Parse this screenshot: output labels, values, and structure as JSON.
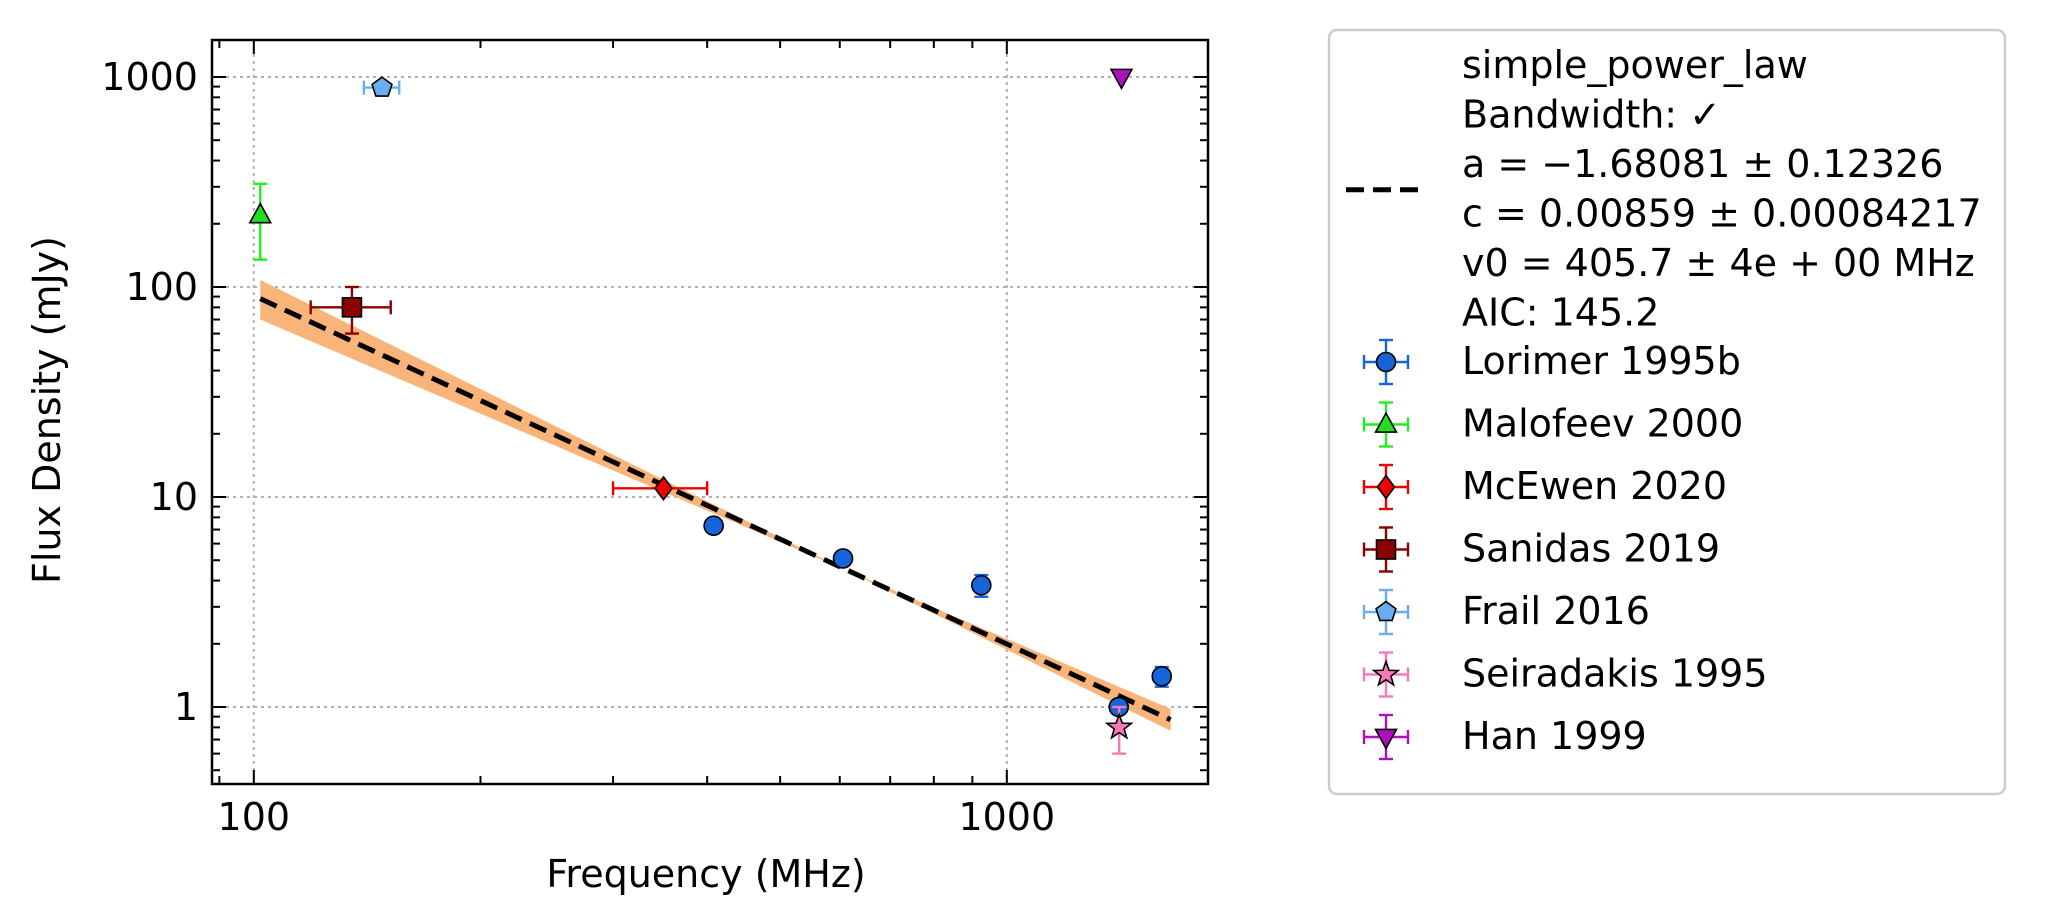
{
  "chart_data": {
    "type": "scatter",
    "title": "",
    "xlabel": "Frequency (MHz)",
    "ylabel": "Flux Density (mJy)",
    "xscale": "log",
    "yscale": "log",
    "xlim": [
      88,
      1850
    ],
    "ylim": [
      0.43,
      1500
    ],
    "grid": true,
    "legend_position": "outside-right",
    "x_ticks": [
      {
        "value": 100,
        "label": "100"
      },
      {
        "value": 1000,
        "label": "1000"
      }
    ],
    "y_ticks": [
      {
        "value": 1,
        "label": "1"
      },
      {
        "value": 10,
        "label": "10"
      },
      {
        "value": 100,
        "label": "100"
      },
      {
        "value": 1000,
        "label": "1000"
      }
    ],
    "fit": {
      "name": "simple_power_law",
      "bandwidth_line": "Bandwidth: ✓",
      "param_lines": [
        "a = −1.68081 ± 0.12326",
        "c = 0.00859 ± 0.00084217",
        "v0 = 405.7 ± 4e + 00 MHz",
        "AIC: 145.2"
      ],
      "x_range": [
        102,
        1650
      ],
      "line_points": [
        [
          102,
          88
        ],
        [
          1650,
          0.87
        ]
      ],
      "band_upper": [
        [
          102,
          108
        ],
        [
          1650,
          0.77
        ]
      ],
      "band_lower": [
        [
          102,
          70
        ],
        [
          1650,
          0.98
        ]
      ],
      "line_color": "#000000",
      "band_color": "#f9b47a"
    },
    "series": [
      {
        "name": "Lorimer 1995b",
        "marker": "circle",
        "color": "#1565d8",
        "err_color": "#1565d8",
        "points": [
          {
            "x": 408,
            "y": 7.3,
            "yerr": 0.4
          },
          {
            "x": 606,
            "y": 5.1,
            "yerr": 0.35
          },
          {
            "x": 925,
            "y": 3.8,
            "yerr": 0.45
          },
          {
            "x": 1408,
            "y": 1.0,
            "yerr": 0.06
          },
          {
            "x": 1606,
            "y": 1.4,
            "yerr": 0.15
          }
        ]
      },
      {
        "name": "Malofeev 2000",
        "marker": "triangle-up",
        "color": "#22dd22",
        "err_color": "#22ee22",
        "points": [
          {
            "x": 102,
            "y": 220,
            "yerr_low": 85,
            "yerr_high": 90
          }
        ]
      },
      {
        "name": "McEwen 2020",
        "marker": "diamond",
        "color": "#ee0000",
        "err_color": "#ee0000",
        "points": [
          {
            "x": 350,
            "y": 11,
            "xerr_low": 50,
            "xerr_high": 50
          }
        ]
      },
      {
        "name": "Sanidas 2019",
        "marker": "square",
        "color": "#8b0000",
        "err_color": "#8b0000",
        "points": [
          {
            "x": 135,
            "y": 80,
            "yerr_low": 20,
            "yerr_high": 20,
            "xerr_low": 16,
            "xerr_high": 17
          }
        ]
      },
      {
        "name": "Frail 2016",
        "marker": "pentagon",
        "color": "#6aaeee",
        "err_color": "#6aaeee",
        "points": [
          {
            "x": 148,
            "y": 890,
            "xerr_low": 8,
            "xerr_high": 8
          }
        ]
      },
      {
        "name": "Seiradakis 1995",
        "marker": "star",
        "color": "#f779b8",
        "err_color": "#f779b8",
        "points": [
          {
            "x": 1410,
            "y": 0.8,
            "yerr_low": 0.2,
            "yerr_high": 0.2
          }
        ]
      },
      {
        "name": "Han 1999",
        "marker": "triangle-down",
        "color": "#b00fbf",
        "err_color": "#b00fbf",
        "points": [
          {
            "x": 1420,
            "y": 1000
          }
        ]
      }
    ]
  }
}
